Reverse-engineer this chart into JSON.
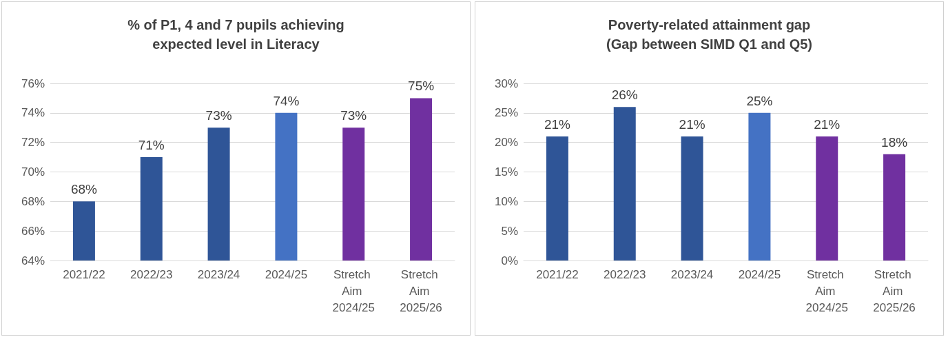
{
  "chart_data": [
    {
      "type": "bar",
      "title": "% of P1, 4 and 7 pupils achieving\nexpected level in Literacy",
      "categories": [
        "2021/22",
        "2022/23",
        "2023/24",
        "2024/25",
        "Stretch Aim 2024/25",
        "Stretch Aim 2025/26"
      ],
      "values": [
        68,
        71,
        73,
        74,
        73,
        75
      ],
      "colors": [
        "#2f5597",
        "#2f5597",
        "#2f5597",
        "#4472c4",
        "#7030a0",
        "#7030a0"
      ],
      "value_labels": [
        "68%",
        "71%",
        "73%",
        "74%",
        "73%",
        "75%"
      ],
      "ylim": [
        64,
        76
      ],
      "yticks": [
        {
          "value": 64,
          "label": "64%"
        },
        {
          "value": 66,
          "label": "66%"
        },
        {
          "value": 68,
          "label": "68%"
        },
        {
          "value": 70,
          "label": "70%"
        },
        {
          "value": 72,
          "label": "72%"
        },
        {
          "value": 74,
          "label": "74%"
        },
        {
          "value": 76,
          "label": "76%"
        }
      ],
      "grid": "y"
    },
    {
      "type": "bar",
      "title": "Poverty-related attainment gap\n(Gap between SIMD Q1 and Q5)",
      "categories": [
        "2021/22",
        "2022/23",
        "2023/24",
        "2024/25",
        "Stretch Aim 2024/25",
        "Stretch Aim 2025/26"
      ],
      "values": [
        21,
        26,
        21,
        25,
        21,
        18
      ],
      "colors": [
        "#2f5597",
        "#2f5597",
        "#2f5597",
        "#4472c4",
        "#7030a0",
        "#7030a0"
      ],
      "value_labels": [
        "21%",
        "26%",
        "21%",
        "25%",
        "21%",
        "18%"
      ],
      "ylim": [
        0,
        30
      ],
      "yticks": [
        {
          "value": 0,
          "label": "0%"
        },
        {
          "value": 5,
          "label": "5%"
        },
        {
          "value": 10,
          "label": "10%"
        },
        {
          "value": 15,
          "label": "15%"
        },
        {
          "value": 20,
          "label": "20%"
        },
        {
          "value": 25,
          "label": "25%"
        },
        {
          "value": 30,
          "label": "30%"
        }
      ],
      "grid": "y"
    }
  ]
}
